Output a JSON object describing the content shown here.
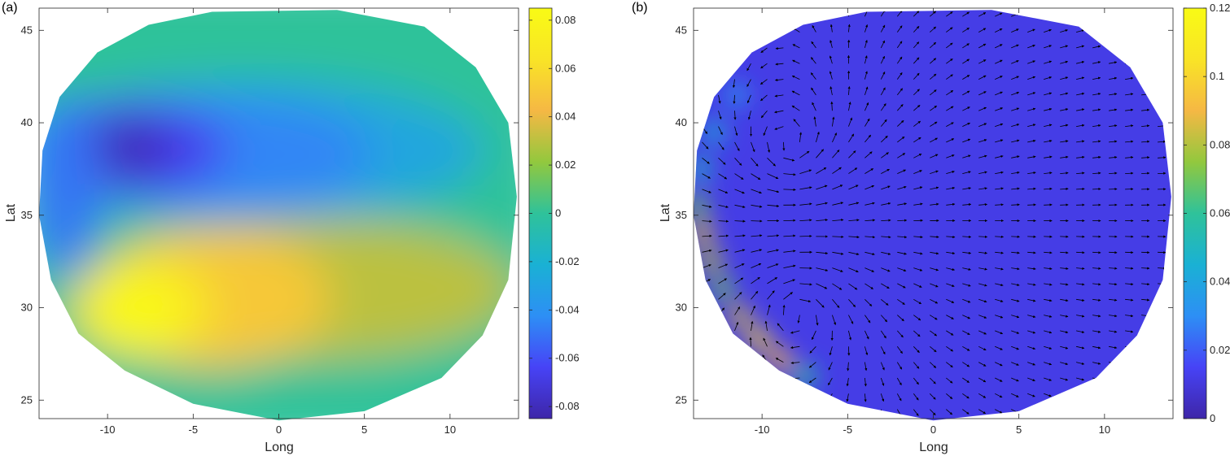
{
  "colormap": [
    "#3e26a8",
    "#4743f6",
    "#2d8ff5",
    "#1ab1d4",
    "#2fc29a",
    "#92c83e",
    "#f5b844",
    "#f9e426",
    "#f9fb15"
  ],
  "chart_data": [
    {
      "panel_label": "(a)",
      "type": "heatmap",
      "title": "",
      "xlabel": "Long",
      "ylabel": "Lat",
      "xlim": [
        -14,
        14
      ],
      "ylim": [
        24,
        46.2
      ],
      "xticks": [
        -10,
        -5,
        0,
        5,
        10
      ],
      "xtick_labels": [
        "-10",
        "-5",
        "0",
        "5",
        "10"
      ],
      "yticks": [
        25,
        30,
        35,
        40,
        45
      ],
      "ytick_labels": [
        "25",
        "30",
        "35",
        "40",
        "45"
      ],
      "colorbar": {
        "range": [
          -0.085,
          0.085
        ],
        "ticks": [
          -0.08,
          -0.06,
          -0.04,
          -0.02,
          0,
          0.02,
          0.04,
          0.06,
          0.08
        ],
        "tick_labels": [
          "-0.08",
          "-0.06",
          "-0.04",
          "-0.02",
          "0",
          "0.02",
          "0.04",
          "0.06",
          "0.08"
        ]
      },
      "features": [
        {
          "kind": "minimum",
          "long": -8.5,
          "lat": 38.7,
          "value": -0.08
        },
        {
          "kind": "maximum",
          "long": -8.0,
          "lat": 30.0,
          "value": 0.08
        }
      ]
    },
    {
      "panel_label": "(b)",
      "type": "heatmap",
      "title": "",
      "xlabel": "Long",
      "ylabel": "Lat",
      "xlim": [
        -14,
        14
      ],
      "ylim": [
        24,
        46.2
      ],
      "xticks": [
        -10,
        -5,
        0,
        5,
        10
      ],
      "xtick_labels": [
        "-10",
        "-5",
        "0",
        "5",
        "10"
      ],
      "yticks": [
        25,
        30,
        35,
        40,
        45
      ],
      "ytick_labels": [
        "25",
        "30",
        "35",
        "40",
        "45"
      ],
      "colorbar": {
        "range": [
          0,
          0.12
        ],
        "ticks": [
          0,
          0.02,
          0.04,
          0.06,
          0.08,
          0.1,
          0.12
        ],
        "tick_labels": [
          "0",
          "0.02",
          "0.04",
          "0.06",
          "0.08",
          "0.1",
          "0.12"
        ]
      },
      "overlay": "velocity arrows (quiver)",
      "features": [
        {
          "kind": "eddy",
          "long": -8.5,
          "lat": 38.7
        },
        {
          "kind": "eddy",
          "long": -8.0,
          "lat": 30.0
        },
        {
          "kind": "boundary-current maximum",
          "long": -9.5,
          "lat": 28.0,
          "value": 0.1
        }
      ]
    }
  ]
}
